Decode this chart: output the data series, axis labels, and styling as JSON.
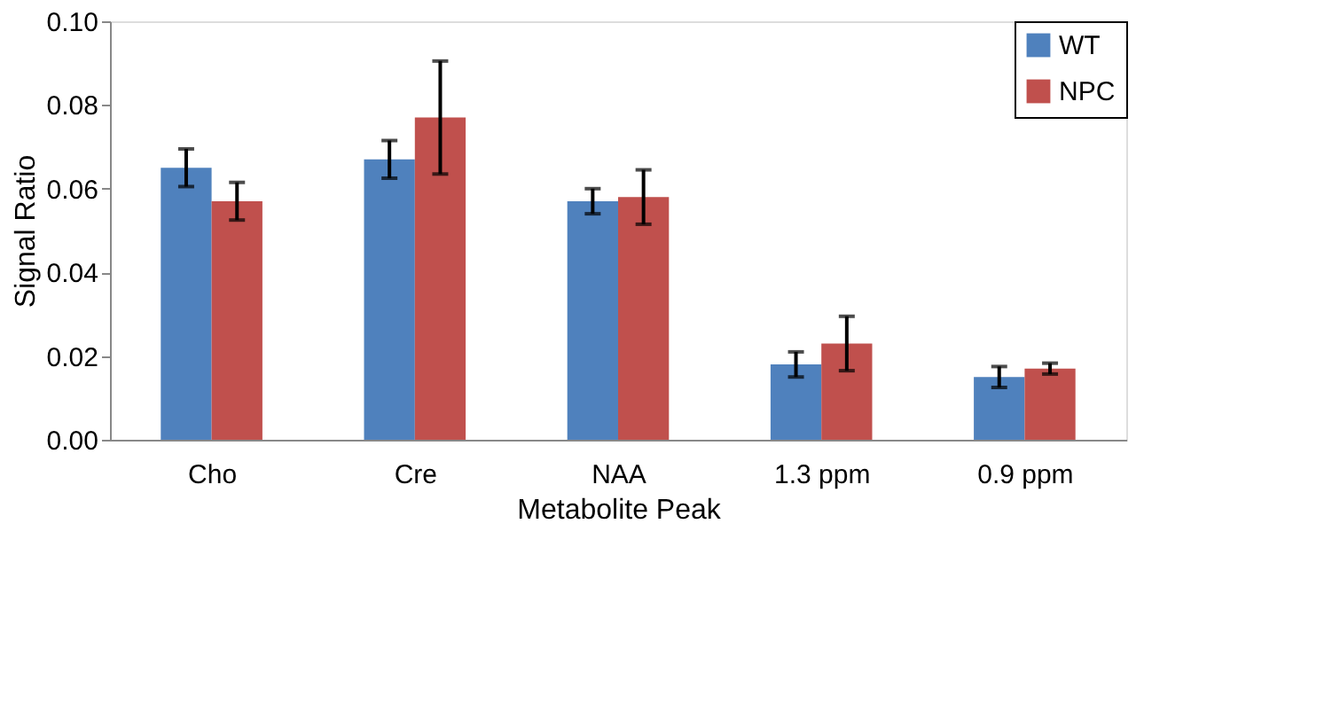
{
  "chart_data": {
    "type": "bar",
    "xlabel": "Metabolite Peak",
    "ylabel": "Signal Ratio",
    "categories": [
      "Cho",
      "Cre",
      "NAA",
      "1.3 ppm",
      "0.9 ppm"
    ],
    "series": [
      {
        "name": "WT",
        "color": "#4f81bd",
        "values": [
          0.065,
          0.067,
          0.057,
          0.018,
          0.015
        ],
        "errors": [
          0.0045,
          0.0045,
          0.003,
          0.003,
          0.0025
        ]
      },
      {
        "name": "NPC",
        "color": "#c0504d",
        "values": [
          0.057,
          0.077,
          0.058,
          0.023,
          0.017
        ],
        "errors": [
          0.0045,
          0.0135,
          0.0065,
          0.0065,
          0.0013
        ]
      }
    ],
    "ylim": [
      0,
      0.1
    ],
    "yticks": [
      {
        "value": 0,
        "label": "0.00"
      },
      {
        "value": 0.02,
        "label": "0.02"
      },
      {
        "value": 0.04,
        "label": "0.04"
      },
      {
        "value": 0.06,
        "label": "0.06"
      },
      {
        "value": 0.08,
        "label": "0.08"
      },
      {
        "value": 0.1,
        "label": "0.10"
      }
    ],
    "grid": false,
    "legend": "top right"
  }
}
